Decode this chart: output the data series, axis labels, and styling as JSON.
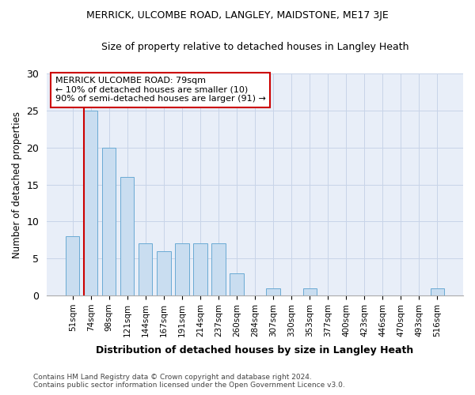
{
  "title": "MERRICK, ULCOMBE ROAD, LANGLEY, MAIDSTONE, ME17 3JE",
  "subtitle": "Size of property relative to detached houses in Langley Heath",
  "xlabel": "Distribution of detached houses by size in Langley Heath",
  "ylabel": "Number of detached properties",
  "categories": [
    "51sqm",
    "74sqm",
    "98sqm",
    "121sqm",
    "144sqm",
    "167sqm",
    "191sqm",
    "214sqm",
    "237sqm",
    "260sqm",
    "284sqm",
    "307sqm",
    "330sqm",
    "353sqm",
    "377sqm",
    "400sqm",
    "423sqm",
    "446sqm",
    "470sqm",
    "493sqm",
    "516sqm"
  ],
  "values": [
    8,
    25,
    20,
    16,
    7,
    6,
    7,
    7,
    7,
    3,
    0,
    1,
    0,
    1,
    0,
    0,
    0,
    0,
    0,
    0,
    1
  ],
  "bar_color": "#c9ddf0",
  "bar_edge_color": "#6aaad4",
  "vline_x_index": 1,
  "vline_color": "#cc0000",
  "annotation_title": "MERRICK ULCOMBE ROAD: 79sqm",
  "annotation_line1": "← 10% of detached houses are smaller (10)",
  "annotation_line2": "90% of semi-detached houses are larger (91) →",
  "annotation_box_color": "#ffffff",
  "annotation_box_edge": "#cc0000",
  "ylim": [
    0,
    30
  ],
  "yticks": [
    0,
    5,
    10,
    15,
    20,
    25,
    30
  ],
  "grid_color": "#c8d4e8",
  "bg_color": "#e8eef8",
  "footer1": "Contains HM Land Registry data © Crown copyright and database right 2024.",
  "footer2": "Contains public sector information licensed under the Open Government Licence v3.0."
}
